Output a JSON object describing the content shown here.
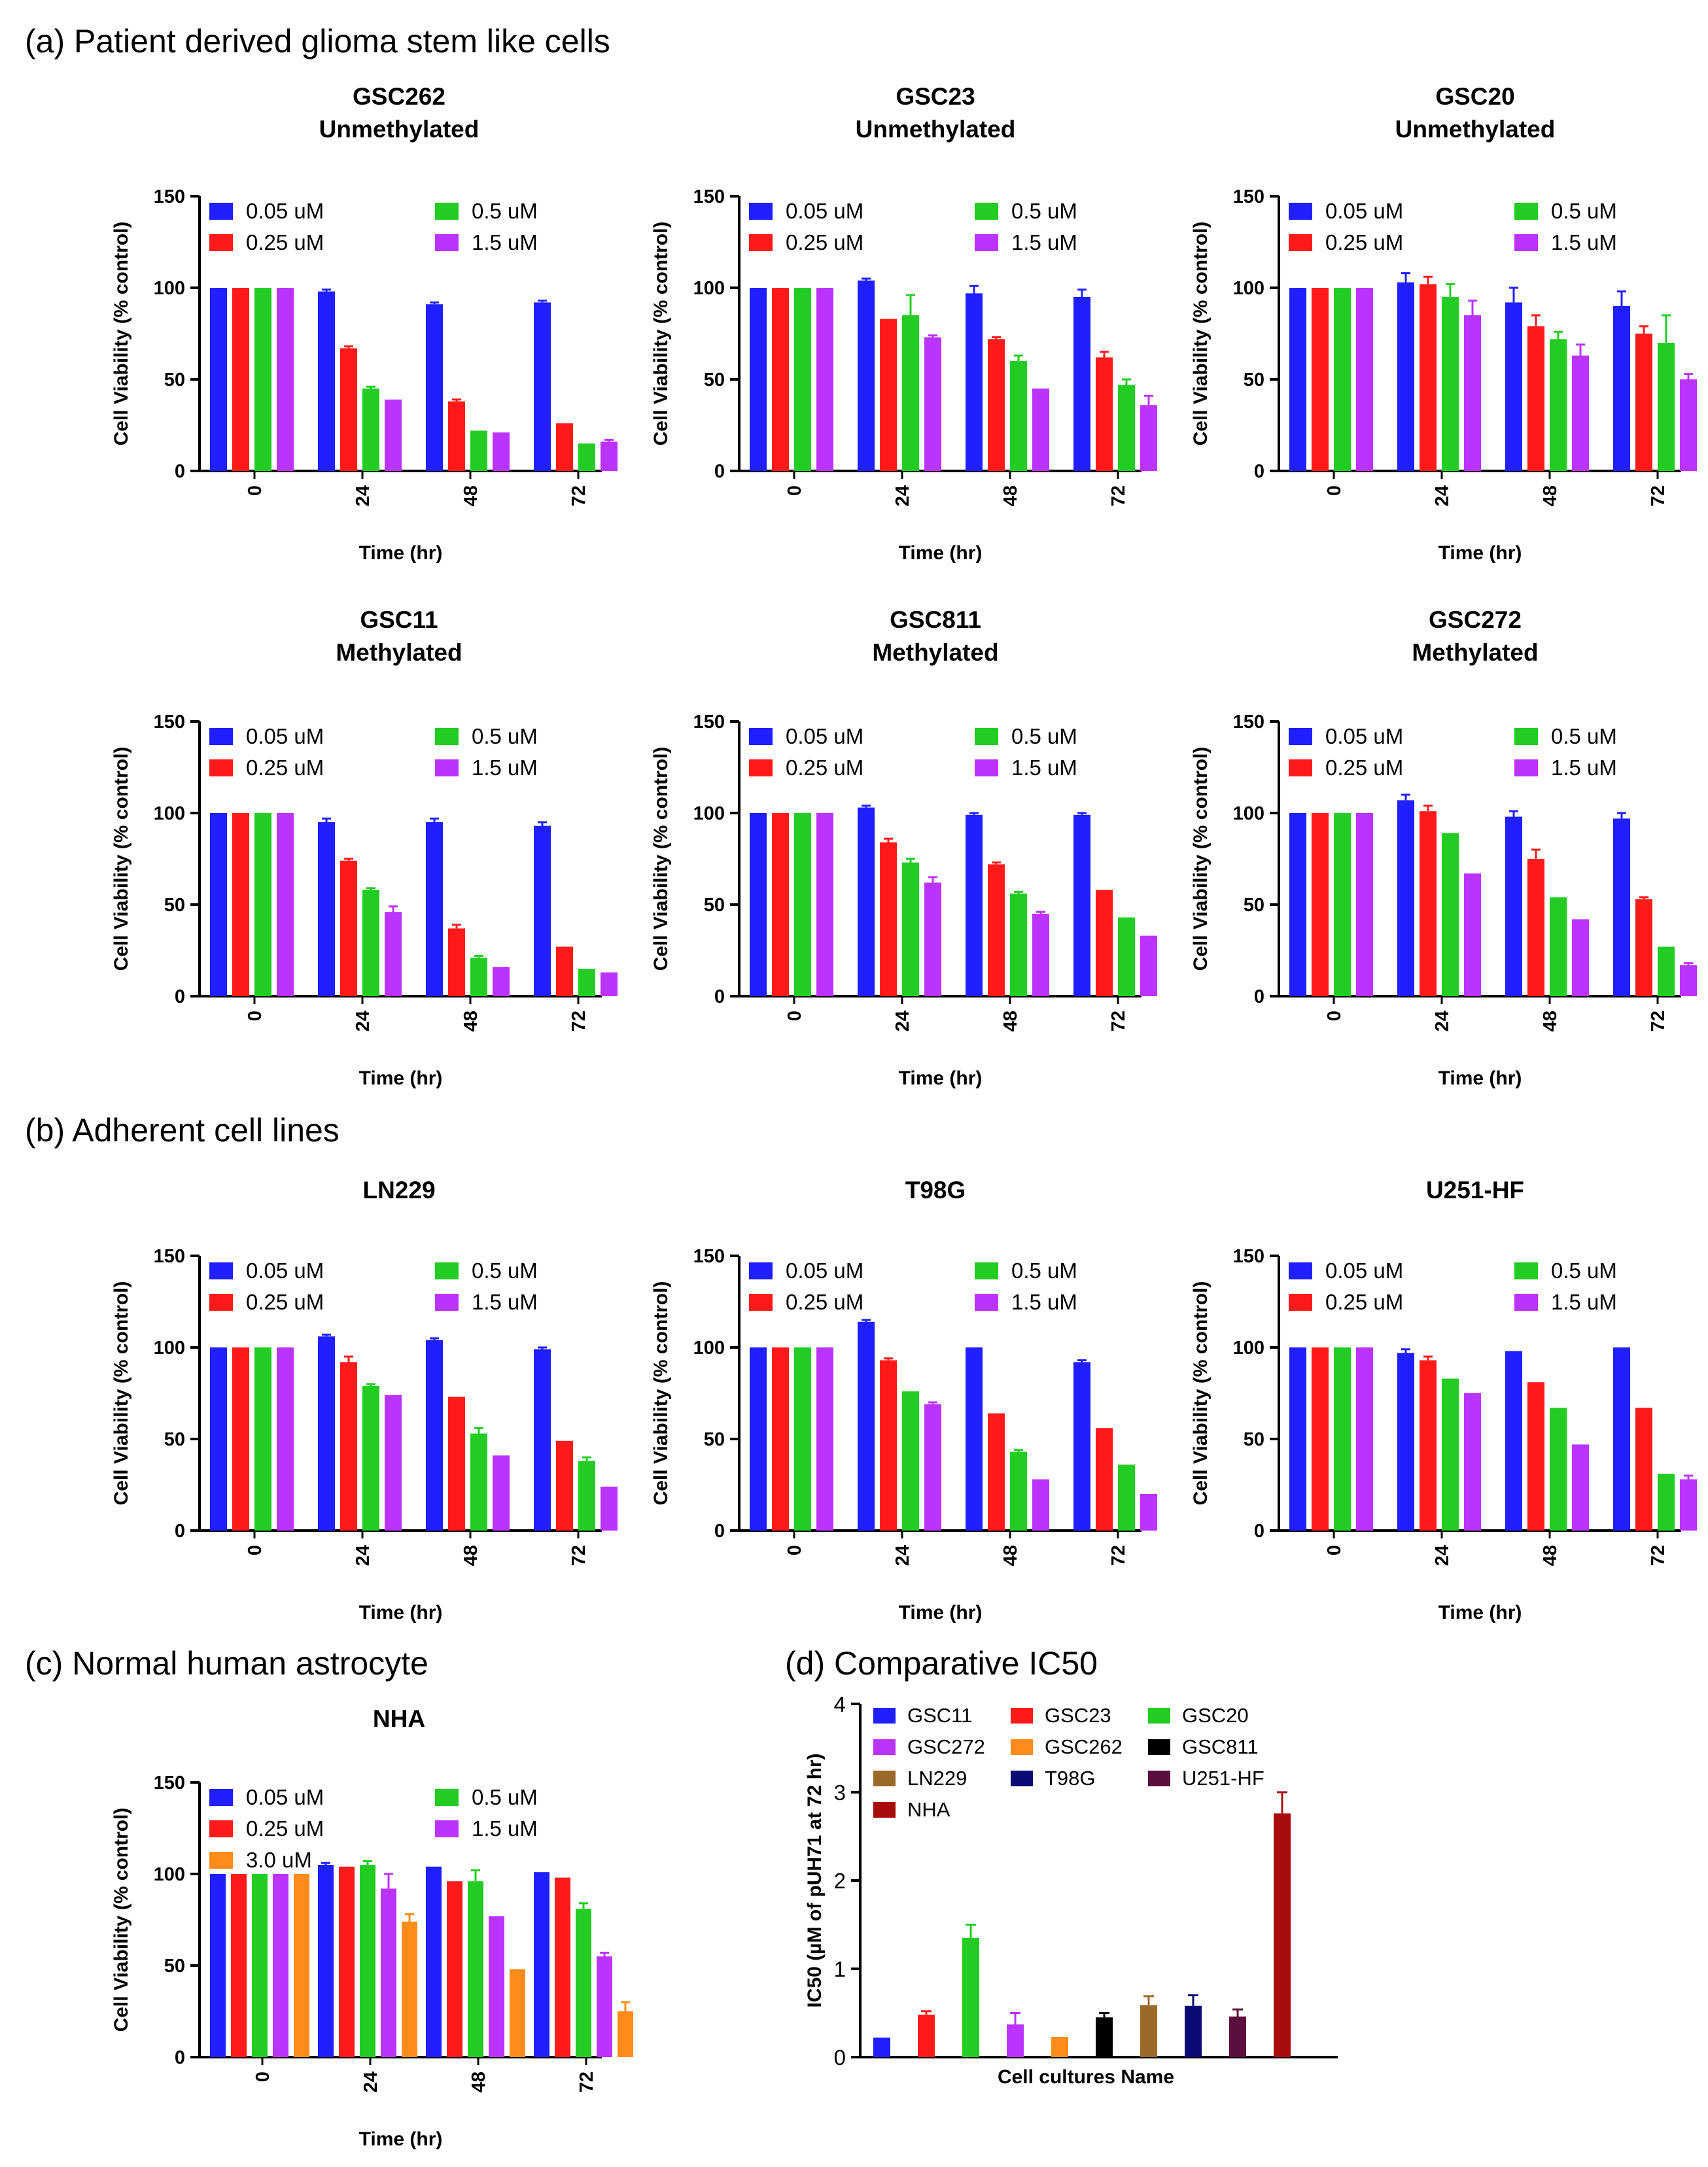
{
  "section_titles": {
    "a": "(a)  Patient derived glioma stem like cells",
    "b": "(b)  Adherent cell lines",
    "c": "(c)  Normal human astrocyte",
    "d": "(d) Comparative IC50"
  },
  "colors": {
    "blue": "#1f1fff",
    "red": "#ff1a1a",
    "green": "#22cc22",
    "violet": "#bb33ff",
    "orange": "#ff8c1a"
  },
  "chart_data": [
    {
      "id": "gsc262",
      "type": "bar",
      "section": "a",
      "title": [
        "GSC262",
        "Unmethylated"
      ],
      "xlabel": "Time (hr)",
      "ylabel": "Cell Viability (% control)",
      "ylim": [
        0,
        150
      ],
      "yticks": [
        0,
        50,
        100,
        150
      ],
      "categories": [
        "0",
        "24",
        "48",
        "72"
      ],
      "series": [
        {
          "name": "0.05 uM",
          "color": "blue",
          "values": [
            100,
            98,
            91,
            92
          ],
          "errors": [
            0,
            1,
            1,
            1
          ]
        },
        {
          "name": "0.25 uM",
          "color": "red",
          "values": [
            100,
            67,
            38,
            26
          ],
          "errors": [
            0,
            1,
            1,
            0.5
          ]
        },
        {
          "name": "0.5 uM",
          "color": "green",
          "values": [
            100,
            45,
            22,
            15
          ],
          "errors": [
            0,
            1,
            0.5,
            0.5
          ]
        },
        {
          "name": "1.5 uM",
          "color": "violet",
          "values": [
            100,
            39,
            21,
            16
          ],
          "errors": [
            0,
            0.5,
            0.5,
            1
          ]
        }
      ]
    },
    {
      "id": "gsc23",
      "type": "bar",
      "section": "a",
      "title": [
        "GSC23",
        "Unmethylated"
      ],
      "xlabel": "Time (hr)",
      "ylabel": "Cell Viability (% control)",
      "ylim": [
        0,
        150
      ],
      "yticks": [
        0,
        50,
        100,
        150
      ],
      "categories": [
        "0",
        "24",
        "48",
        "72"
      ],
      "series": [
        {
          "name": "0.05 uM",
          "color": "blue",
          "values": [
            100,
            104,
            97,
            95
          ],
          "errors": [
            0,
            1,
            4,
            4
          ]
        },
        {
          "name": "0.25 uM",
          "color": "red",
          "values": [
            100,
            83,
            72,
            62
          ],
          "errors": [
            0,
            0.5,
            1,
            3
          ]
        },
        {
          "name": "0.5 uM",
          "color": "green",
          "values": [
            100,
            85,
            60,
            47
          ],
          "errors": [
            0,
            11,
            3,
            3
          ]
        },
        {
          "name": "1.5 uM",
          "color": "violet",
          "values": [
            100,
            73,
            45,
            36
          ],
          "errors": [
            0,
            1,
            0.5,
            5
          ]
        }
      ]
    },
    {
      "id": "gsc20",
      "type": "bar",
      "section": "a",
      "title": [
        "GSC20",
        "Unmethylated"
      ],
      "xlabel": "Time (hr)",
      "ylabel": "Cell Viability (% control)",
      "ylim": [
        0,
        150
      ],
      "yticks": [
        0,
        50,
        100,
        150
      ],
      "categories": [
        "0",
        "24",
        "48",
        "72"
      ],
      "series": [
        {
          "name": "0.05 uM",
          "color": "blue",
          "values": [
            100,
            103,
            92,
            90
          ],
          "errors": [
            0,
            5,
            8,
            8
          ]
        },
        {
          "name": "0.25 uM",
          "color": "red",
          "values": [
            100,
            102,
            79,
            75
          ],
          "errors": [
            0,
            4,
            6,
            4
          ]
        },
        {
          "name": "0.5 uM",
          "color": "green",
          "values": [
            100,
            95,
            72,
            70
          ],
          "errors": [
            0,
            7,
            4,
            15
          ]
        },
        {
          "name": "1.5 uM",
          "color": "violet",
          "values": [
            100,
            85,
            63,
            50
          ],
          "errors": [
            0,
            8,
            6,
            3
          ]
        }
      ]
    },
    {
      "id": "gsc11",
      "type": "bar",
      "section": "a",
      "title": [
        "GSC11",
        "Methylated"
      ],
      "xlabel": "Time (hr)",
      "ylabel": "Cell Viability (% control)",
      "ylim": [
        0,
        150
      ],
      "yticks": [
        0,
        50,
        100,
        150
      ],
      "categories": [
        "0",
        "24",
        "48",
        "72"
      ],
      "series": [
        {
          "name": "0.05 uM",
          "color": "blue",
          "values": [
            100,
            95,
            95,
            93
          ],
          "errors": [
            0,
            2,
            2,
            2
          ]
        },
        {
          "name": "0.25 uM",
          "color": "red",
          "values": [
            100,
            74,
            37,
            27
          ],
          "errors": [
            0,
            1,
            2,
            0.5
          ]
        },
        {
          "name": "0.5 uM",
          "color": "green",
          "values": [
            100,
            58,
            21,
            15
          ],
          "errors": [
            0,
            1,
            1,
            0.5
          ]
        },
        {
          "name": "1.5 uM",
          "color": "violet",
          "values": [
            100,
            46,
            16,
            13
          ],
          "errors": [
            0,
            3,
            0.5,
            0.5
          ]
        }
      ]
    },
    {
      "id": "gsc811",
      "type": "bar",
      "section": "a",
      "title": [
        "GSC811",
        "Methylated"
      ],
      "xlabel": "Time (hr)",
      "ylabel": "Cell Viability (% control)",
      "ylim": [
        0,
        150
      ],
      "yticks": [
        0,
        50,
        100,
        150
      ],
      "categories": [
        "0",
        "24",
        "48",
        "72"
      ],
      "series": [
        {
          "name": "0.05 uM",
          "color": "blue",
          "values": [
            100,
            103,
            99,
            99
          ],
          "errors": [
            0,
            1,
            1,
            1
          ]
        },
        {
          "name": "0.25 uM",
          "color": "red",
          "values": [
            100,
            84,
            72,
            58
          ],
          "errors": [
            0,
            2,
            1,
            0.5
          ]
        },
        {
          "name": "0.5 uM",
          "color": "green",
          "values": [
            100,
            73,
            56,
            43
          ],
          "errors": [
            0,
            2,
            1,
            0.5
          ]
        },
        {
          "name": "1.5 uM",
          "color": "violet",
          "values": [
            100,
            62,
            45,
            33
          ],
          "errors": [
            0,
            3,
            1,
            0.5
          ]
        }
      ]
    },
    {
      "id": "gsc272",
      "type": "bar",
      "section": "a",
      "title": [
        "GSC272",
        "Methylated"
      ],
      "xlabel": "Time (hr)",
      "ylabel": "Cell Viability (% control)",
      "ylim": [
        0,
        150
      ],
      "yticks": [
        0,
        50,
        100,
        150
      ],
      "categories": [
        "0",
        "24",
        "48",
        "72"
      ],
      "series": [
        {
          "name": "0.05 uM",
          "color": "blue",
          "values": [
            100,
            107,
            98,
            97
          ],
          "errors": [
            0,
            3,
            3,
            3
          ]
        },
        {
          "name": "0.25 uM",
          "color": "red",
          "values": [
            100,
            101,
            75,
            53
          ],
          "errors": [
            0,
            3,
            5,
            1
          ]
        },
        {
          "name": "0.5 uM",
          "color": "green",
          "values": [
            100,
            89,
            54,
            27
          ],
          "errors": [
            0,
            0.5,
            0.5,
            0.5
          ]
        },
        {
          "name": "1.5 uM",
          "color": "violet",
          "values": [
            100,
            67,
            42,
            17
          ],
          "errors": [
            0,
            0.5,
            0.5,
            1
          ]
        }
      ]
    },
    {
      "id": "ln229",
      "type": "bar",
      "section": "b",
      "title": [
        "LN229"
      ],
      "xlabel": "Time (hr)",
      "ylabel": "Cell Viability (% control)",
      "ylim": [
        0,
        150
      ],
      "yticks": [
        0,
        50,
        100,
        150
      ],
      "categories": [
        "0",
        "24",
        "48",
        "72"
      ],
      "series": [
        {
          "name": "0.05 uM",
          "color": "blue",
          "values": [
            100,
            106,
            104,
            99
          ],
          "errors": [
            0,
            1,
            1,
            1
          ]
        },
        {
          "name": "0.25 uM",
          "color": "red",
          "values": [
            100,
            92,
            73,
            49
          ],
          "errors": [
            0,
            3,
            0.5,
            0.5
          ]
        },
        {
          "name": "0.5 uM",
          "color": "green",
          "values": [
            100,
            79,
            53,
            38
          ],
          "errors": [
            0,
            1,
            3,
            2
          ]
        },
        {
          "name": "1.5 uM",
          "color": "violet",
          "values": [
            100,
            74,
            41,
            24
          ],
          "errors": [
            0,
            0.5,
            0.5,
            0.5
          ]
        }
      ]
    },
    {
      "id": "t98g",
      "type": "bar",
      "section": "b",
      "title": [
        "T98G"
      ],
      "xlabel": "Time (hr)",
      "ylabel": "Cell Viability (% control)",
      "ylim": [
        0,
        150
      ],
      "yticks": [
        0,
        50,
        100,
        150
      ],
      "categories": [
        "0",
        "24",
        "48",
        "72"
      ],
      "series": [
        {
          "name": "0.05 uM",
          "color": "blue",
          "values": [
            100,
            114,
            100,
            92
          ],
          "errors": [
            0,
            1,
            0.5,
            1
          ]
        },
        {
          "name": "0.25 uM",
          "color": "red",
          "values": [
            100,
            93,
            64,
            56
          ],
          "errors": [
            0,
            1,
            0.5,
            0.5
          ]
        },
        {
          "name": "0.5 uM",
          "color": "green",
          "values": [
            100,
            76,
            43,
            36
          ],
          "errors": [
            0,
            0.5,
            1,
            0.5
          ]
        },
        {
          "name": "1.5 uM",
          "color": "violet",
          "values": [
            100,
            69,
            28,
            20
          ],
          "errors": [
            0,
            1,
            0.5,
            0.5
          ]
        }
      ]
    },
    {
      "id": "u251hf",
      "type": "bar",
      "section": "b",
      "title": [
        "U251-HF"
      ],
      "xlabel": "Time (hr)",
      "ylabel": "Cell Viability (% control)",
      "ylim": [
        0,
        150
      ],
      "yticks": [
        0,
        50,
        100,
        150
      ],
      "categories": [
        "0",
        "24",
        "48",
        "72"
      ],
      "series": [
        {
          "name": "0.05 uM",
          "color": "blue",
          "values": [
            100,
            97,
            98,
            100
          ],
          "errors": [
            0,
            2,
            0.5,
            0.5
          ]
        },
        {
          "name": "0.25 uM",
          "color": "red",
          "values": [
            100,
            93,
            81,
            67
          ],
          "errors": [
            0,
            2,
            0.5,
            0.5
          ]
        },
        {
          "name": "0.5 uM",
          "color": "green",
          "values": [
            100,
            83,
            67,
            31
          ],
          "errors": [
            0,
            0.5,
            0.5,
            0.5
          ]
        },
        {
          "name": "1.5 uM",
          "color": "violet",
          "values": [
            100,
            75,
            47,
            28
          ],
          "errors": [
            0,
            0.5,
            0.5,
            2
          ]
        }
      ]
    },
    {
      "id": "nha",
      "type": "bar",
      "section": "c",
      "title": [
        "NHA"
      ],
      "xlabel": "Time (hr)",
      "ylabel": "Cell Viability (% control)",
      "ylim": [
        0,
        150
      ],
      "yticks": [
        0,
        50,
        100,
        150
      ],
      "categories": [
        "0",
        "24",
        "48",
        "72"
      ],
      "series": [
        {
          "name": "0.05 uM",
          "color": "blue",
          "values": [
            100,
            105,
            104,
            101
          ],
          "errors": [
            0,
            1,
            0.5,
            0.5
          ]
        },
        {
          "name": "0.25 uM",
          "color": "red",
          "values": [
            100,
            104,
            96,
            98
          ],
          "errors": [
            0,
            0.5,
            0.5,
            0.5
          ]
        },
        {
          "name": "0.5 uM",
          "color": "green",
          "values": [
            100,
            105,
            96,
            81
          ],
          "errors": [
            0,
            2,
            6,
            3
          ]
        },
        {
          "name": "1.5 uM",
          "color": "violet",
          "values": [
            100,
            92,
            77,
            55
          ],
          "errors": [
            0,
            8,
            0.5,
            2
          ]
        },
        {
          "name": "3.0 uM",
          "color": "orange",
          "values": [
            100,
            74,
            48,
            25
          ],
          "errors": [
            0,
            4,
            0.5,
            5
          ]
        }
      ]
    },
    {
      "id": "ic50",
      "type": "bar",
      "section": "d",
      "title": [],
      "xlabel": "Cell cultures Name",
      "ylabel": "IC50 (µM of pUH71 at 72 hr)",
      "ylim": [
        0,
        4
      ],
      "yticks": [
        0,
        1,
        2,
        3,
        4
      ],
      "categories": [
        "GSC11",
        "GSC23",
        "GSC20",
        "GSC272",
        "GSC262",
        "GSC811",
        "LN229",
        "T98G",
        "U251-HF",
        "NHA"
      ],
      "colors": [
        "#1f1fff",
        "#ff1a1a",
        "#22cc22",
        "#bb33ff",
        "#ff8c1a",
        "#000000",
        "#9c6a28",
        "#0b0b75",
        "#5c0f3c",
        "#a80d0d"
      ],
      "values": [
        0.22,
        0.48,
        1.35,
        0.37,
        0.23,
        0.45,
        0.59,
        0.58,
        0.46,
        2.76
      ],
      "errors": [
        0.02,
        0.04,
        0.15,
        0.13,
        0.02,
        0.05,
        0.1,
        0.12,
        0.08,
        0.24
      ]
    }
  ]
}
